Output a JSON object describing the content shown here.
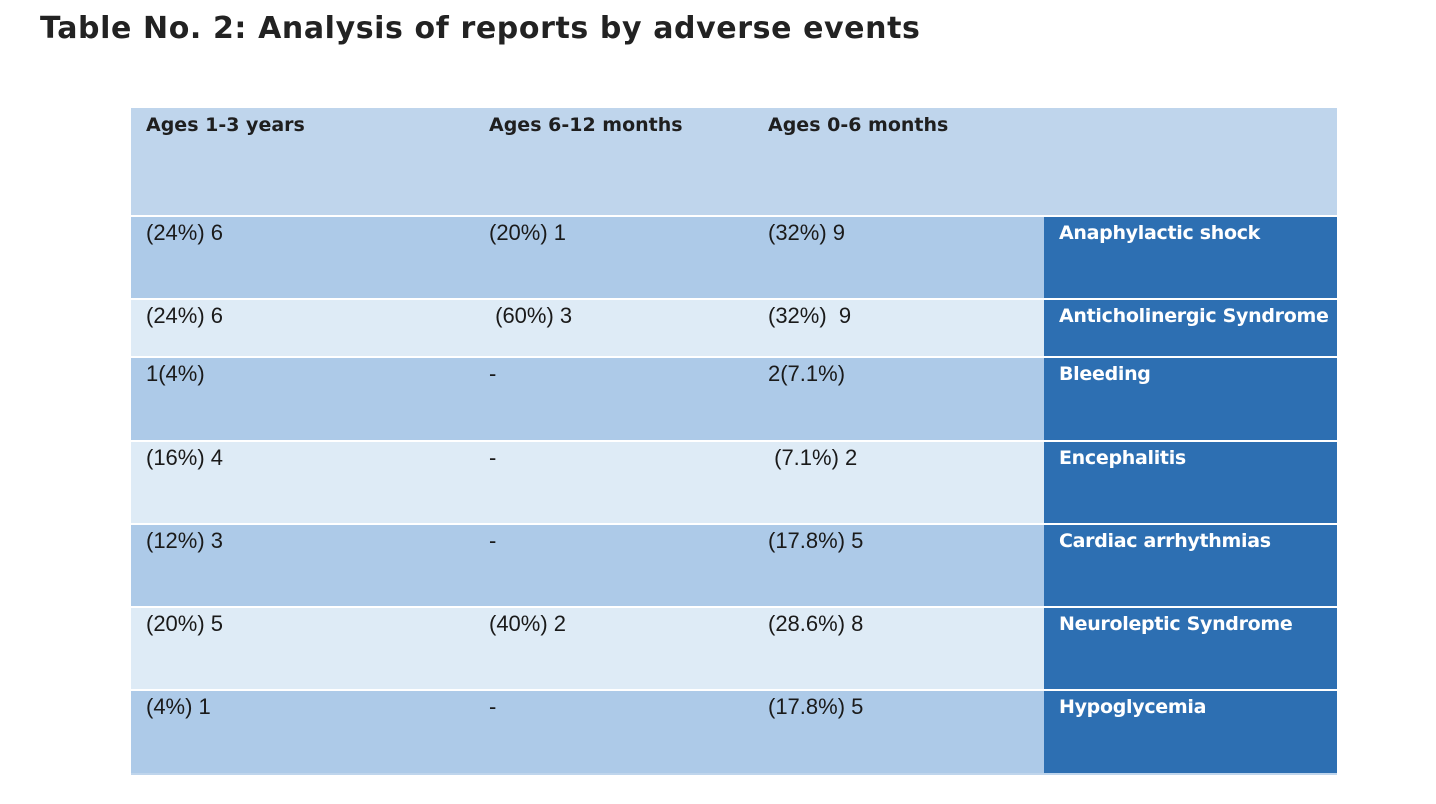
{
  "title": "Table No. 2: Analysis of reports by adverse events",
  "table": {
    "headers": [
      "Ages 1-3 years",
      "Ages 6-12 months",
      "Ages 0-6 months",
      ""
    ],
    "rows": [
      {
        "ages_1_3_years": "(24%) 6",
        "ages_6_12_months": "(20%) 1",
        "ages_0_6_months": "(32%) 9",
        "event": "Anaphylactic shock"
      },
      {
        "ages_1_3_years": "(24%) 6",
        "ages_6_12_months": " (60%) 3",
        "ages_0_6_months": "(32%)  9",
        "event": "Anticholinergic Syndrome"
      },
      {
        "ages_1_3_years": "1(4%)",
        "ages_6_12_months": "-",
        "ages_0_6_months": "2(7.1%)",
        "event": "Bleeding"
      },
      {
        "ages_1_3_years": "(16%) 4",
        "ages_6_12_months": "-",
        "ages_0_6_months": " (7.1%) 2",
        "event": "Encephalitis"
      },
      {
        "ages_1_3_years": "(12%) 3",
        "ages_6_12_months": "-",
        "ages_0_6_months": "(17.8%) 5",
        "event": "Cardiac arrhythmias"
      },
      {
        "ages_1_3_years": "(20%) 5",
        "ages_6_12_months": "(40%) 2",
        "ages_0_6_months": "(28.6%) 8",
        "event": "Neuroleptic Syndrome"
      },
      {
        "ages_1_3_years": "(4%) 1",
        "ages_6_12_months": "-",
        "ages_0_6_months": "(17.8%) 5",
        "event": "Hypoglycemia"
      }
    ]
  },
  "colors": {
    "header_bg": "#bfd5ec",
    "row_dark_bg": "#adcae8",
    "row_light_bg": "#deebf6",
    "label_bg": "#2d6fb2",
    "label_text": "#ffffff"
  }
}
